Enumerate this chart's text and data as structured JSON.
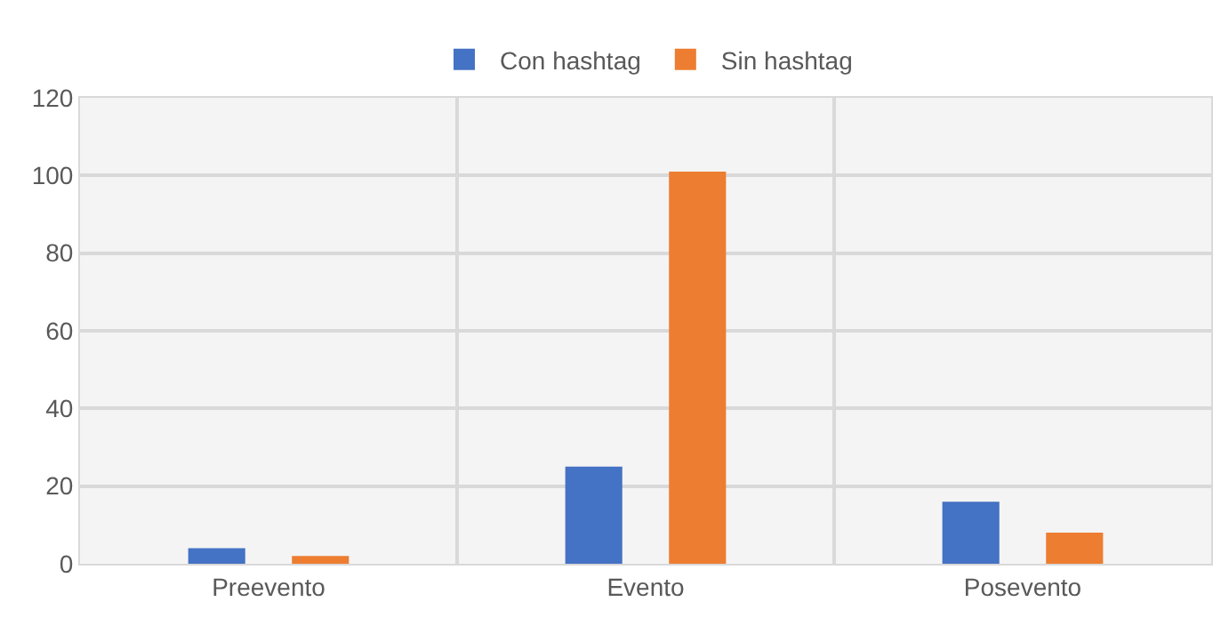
{
  "chart_data": {
    "type": "bar",
    "categories": [
      "Preevento",
      "Evento",
      "Posevento"
    ],
    "series": [
      {
        "name": "Con hashtag",
        "color": "#4472c4",
        "values": [
          4,
          25,
          16
        ]
      },
      {
        "name": "Sin hashtag",
        "color": "#ed7d31",
        "values": [
          2,
          101,
          8
        ]
      }
    ],
    "ylim": [
      0,
      120
    ],
    "yticks": [
      0,
      20,
      40,
      60,
      80,
      100,
      120
    ],
    "grid": true,
    "legend": "top"
  }
}
